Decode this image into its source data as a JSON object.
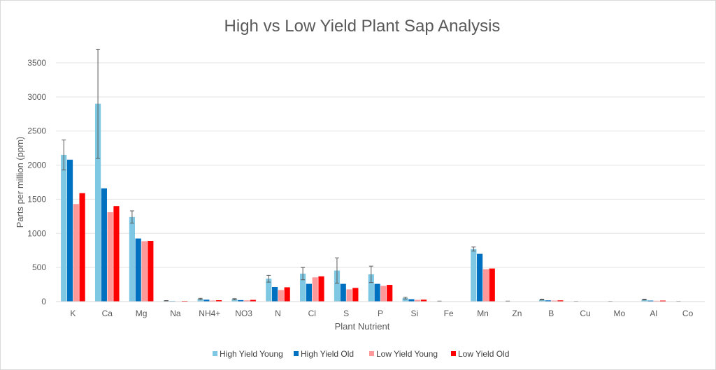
{
  "chart_data": {
    "type": "bar",
    "title": "High vs Low Yield Plant Sap Analysis",
    "xlabel": "Plant Nutrient",
    "ylabel": "Parts per million (ppm)",
    "ylim": [
      0,
      3500
    ],
    "yticks": [
      0,
      500,
      1000,
      1500,
      2000,
      2500,
      3000,
      3500
    ],
    "grid": true,
    "legend_position": "bottom",
    "categories": [
      "K",
      "Ca",
      "Mg",
      "Na",
      "NH4+",
      "NO3",
      "N",
      "Cl",
      "S",
      "P",
      "Si",
      "Fe",
      "Mn",
      "Zn",
      "B",
      "Cu",
      "Mo",
      "Al",
      "Co"
    ],
    "series": [
      {
        "name": "High Yield Young",
        "color": "#7ec8e3",
        "values": [
          2150,
          2900,
          1240,
          12,
          40,
          35,
          335,
          410,
          455,
          400,
          50,
          5,
          770,
          5,
          30,
          2,
          2,
          30,
          2
        ],
        "error": [
          220,
          800,
          90,
          3,
          8,
          8,
          50,
          90,
          185,
          120,
          12,
          2,
          30,
          2,
          6,
          1,
          1,
          6,
          1
        ]
      },
      {
        "name": "High Yield Old",
        "color": "#0070c0",
        "values": [
          2080,
          1660,
          925,
          8,
          28,
          22,
          215,
          260,
          260,
          260,
          35,
          3,
          700,
          3,
          18,
          1,
          1,
          15,
          1
        ]
      },
      {
        "name": "Low Yield Young",
        "color": "#ff9999",
        "values": [
          1430,
          1310,
          885,
          6,
          15,
          18,
          170,
          355,
          180,
          230,
          25,
          2,
          475,
          2,
          15,
          1,
          1,
          12,
          1
        ]
      },
      {
        "name": "Low Yield Old",
        "color": "#ff0000",
        "values": [
          1590,
          1400,
          890,
          10,
          20,
          25,
          210,
          370,
          200,
          245,
          28,
          3,
          485,
          2,
          18,
          1,
          1,
          15,
          1
        ]
      }
    ]
  }
}
